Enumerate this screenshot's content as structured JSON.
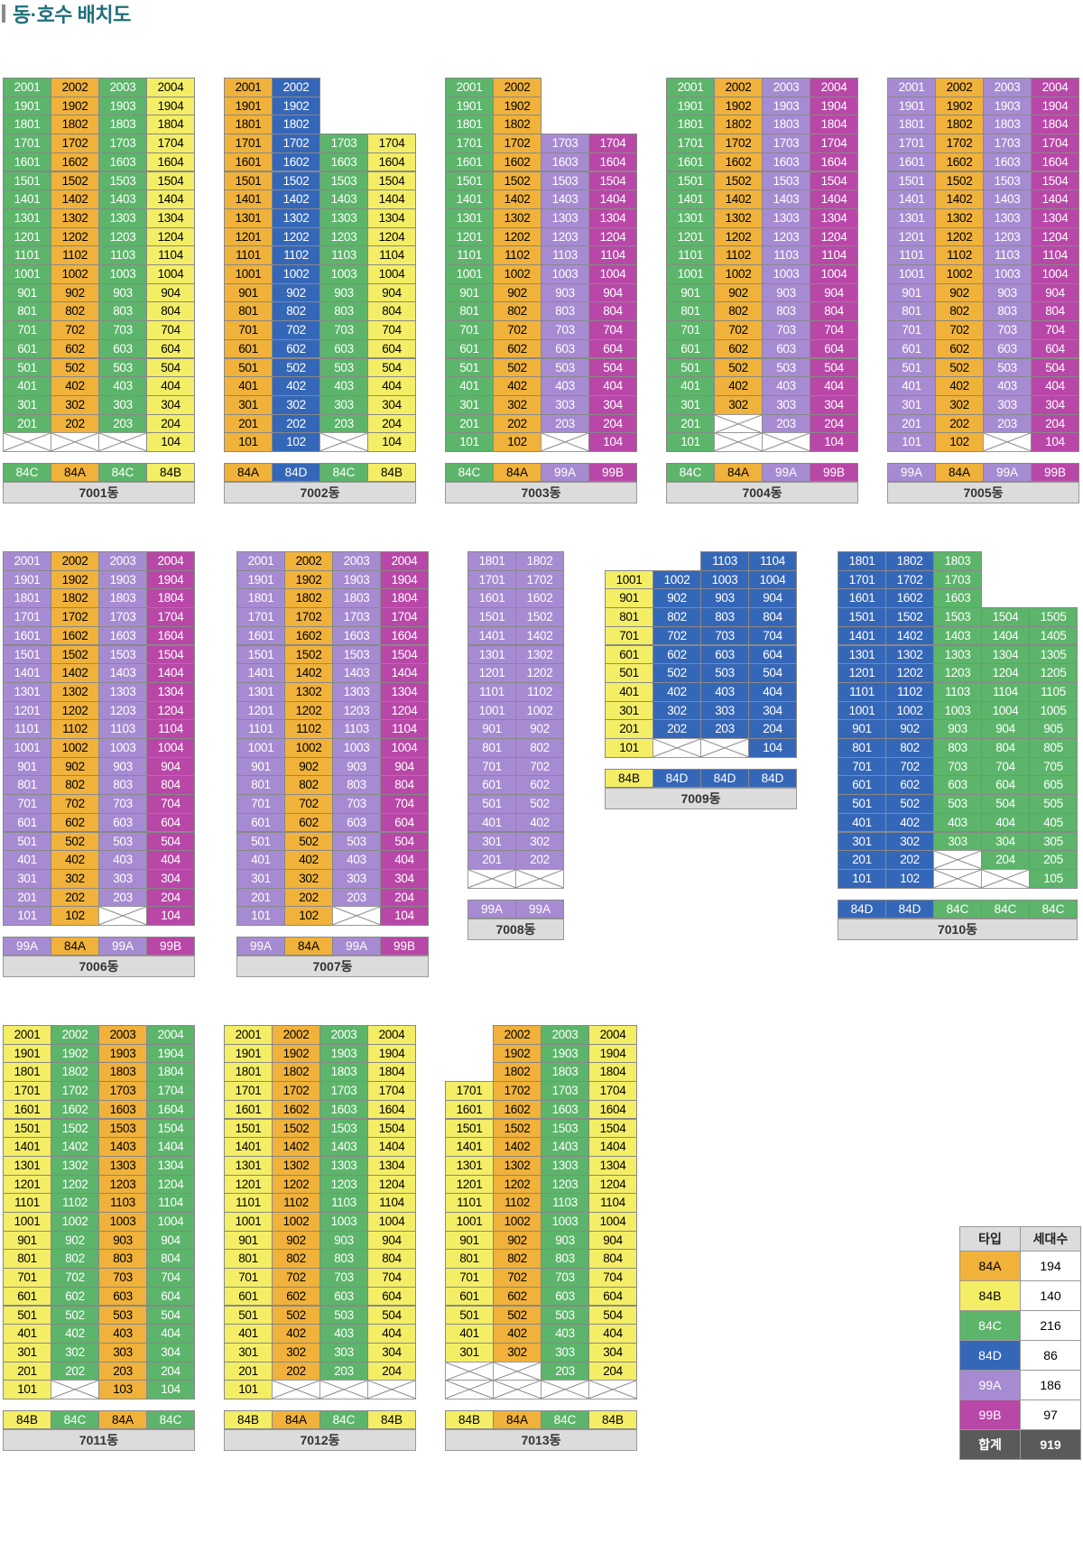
{
  "title": "동·호수 배치도",
  "colors": {
    "84A": "#f0b23a",
    "84B": "#f4ee66",
    "84C": "#5cb56a",
    "84D": "#3567b8",
    "99A": "#a78bd2",
    "99B": "#b947a8"
  },
  "buildings": [
    {
      "name": "7001동",
      "top": 20,
      "bottom": 1,
      "types": [
        "84C",
        "84A",
        "84C",
        "84B"
      ],
      "vacant": {
        "1": [
          1,
          2,
          3
        ]
      }
    },
    {
      "name": "7002동",
      "top": 20,
      "bottom": 1,
      "types": [
        "84A",
        "84D",
        "84C",
        "84B"
      ],
      "colTop": [
        20,
        20,
        17,
        17
      ],
      "vacant": {
        "1": [
          3
        ]
      }
    },
    {
      "name": "7003동",
      "top": 20,
      "bottom": 1,
      "types": [
        "84C",
        "84A",
        "99A",
        "99B"
      ],
      "colTop": [
        20,
        20,
        17,
        17
      ],
      "vacant": {
        "1": [
          3
        ]
      }
    },
    {
      "name": "7004동",
      "top": 20,
      "bottom": 1,
      "types": [
        "84C",
        "84A",
        "99A",
        "99B"
      ],
      "vacant": {
        "2": [
          2
        ],
        "1": [
          2,
          3
        ]
      }
    },
    {
      "name": "7005동",
      "top": 20,
      "bottom": 1,
      "types": [
        "99A",
        "84A",
        "99A",
        "99B"
      ],
      "vacant": {
        "1": [
          3
        ]
      }
    },
    {
      "name": "7006동",
      "top": 20,
      "bottom": 1,
      "types": [
        "99A",
        "84A",
        "99A",
        "99B"
      ],
      "vacant": {
        "1": [
          3
        ]
      }
    },
    {
      "name": "7007동",
      "top": 20,
      "bottom": 1,
      "types": [
        "99A",
        "84A",
        "99A",
        "99B"
      ],
      "vacant": {
        "1": [
          3
        ]
      }
    },
    {
      "name": "7008동",
      "top": 18,
      "bottom": 1,
      "types": [
        "99A",
        "99A"
      ],
      "vacant": {
        "1": [
          1,
          2
        ]
      }
    },
    {
      "name": "7009동",
      "top": 11,
      "bottom": 1,
      "types": [
        "84B",
        "84D",
        "84D",
        "84D"
      ],
      "colTop": [
        10,
        10,
        11,
        11
      ],
      "vacant": {
        "1": [
          2,
          3
        ]
      }
    },
    {
      "name": "7010동",
      "top": 18,
      "bottom": 1,
      "types": [
        "84D",
        "84D",
        "84C",
        "84C",
        "84C"
      ],
      "colTop": [
        18,
        18,
        18,
        15,
        15
      ],
      "vacant": {
        "2": [
          3
        ],
        "1": [
          3,
          4
        ]
      }
    },
    {
      "name": "7011동",
      "top": 20,
      "bottom": 1,
      "types": [
        "84B",
        "84C",
        "84A",
        "84C"
      ],
      "vacant": {
        "1": [
          2
        ]
      }
    },
    {
      "name": "7012동",
      "top": 20,
      "bottom": 1,
      "types": [
        "84B",
        "84A",
        "84C",
        "84B"
      ],
      "vacant": {
        "1": [
          2,
          3,
          4
        ]
      }
    },
    {
      "name": "7013동",
      "top": 20,
      "bottom": 1,
      "types": [
        "84B",
        "84A",
        "84C",
        "84B"
      ],
      "colTop": [
        17,
        20,
        20,
        20
      ],
      "vacant": {
        "2": [
          1,
          2
        ],
        "1": [
          1,
          2,
          3,
          4
        ]
      }
    }
  ],
  "legend": {
    "header_type": "타입",
    "header_count": "세대수",
    "rows": [
      {
        "type": "84A",
        "count": "194"
      },
      {
        "type": "84B",
        "count": "140"
      },
      {
        "type": "84C",
        "count": "216"
      },
      {
        "type": "84D",
        "count": "86"
      },
      {
        "type": "99A",
        "count": "186"
      },
      {
        "type": "99B",
        "count": "97"
      }
    ],
    "total_label": "합계",
    "total_count": "919"
  }
}
